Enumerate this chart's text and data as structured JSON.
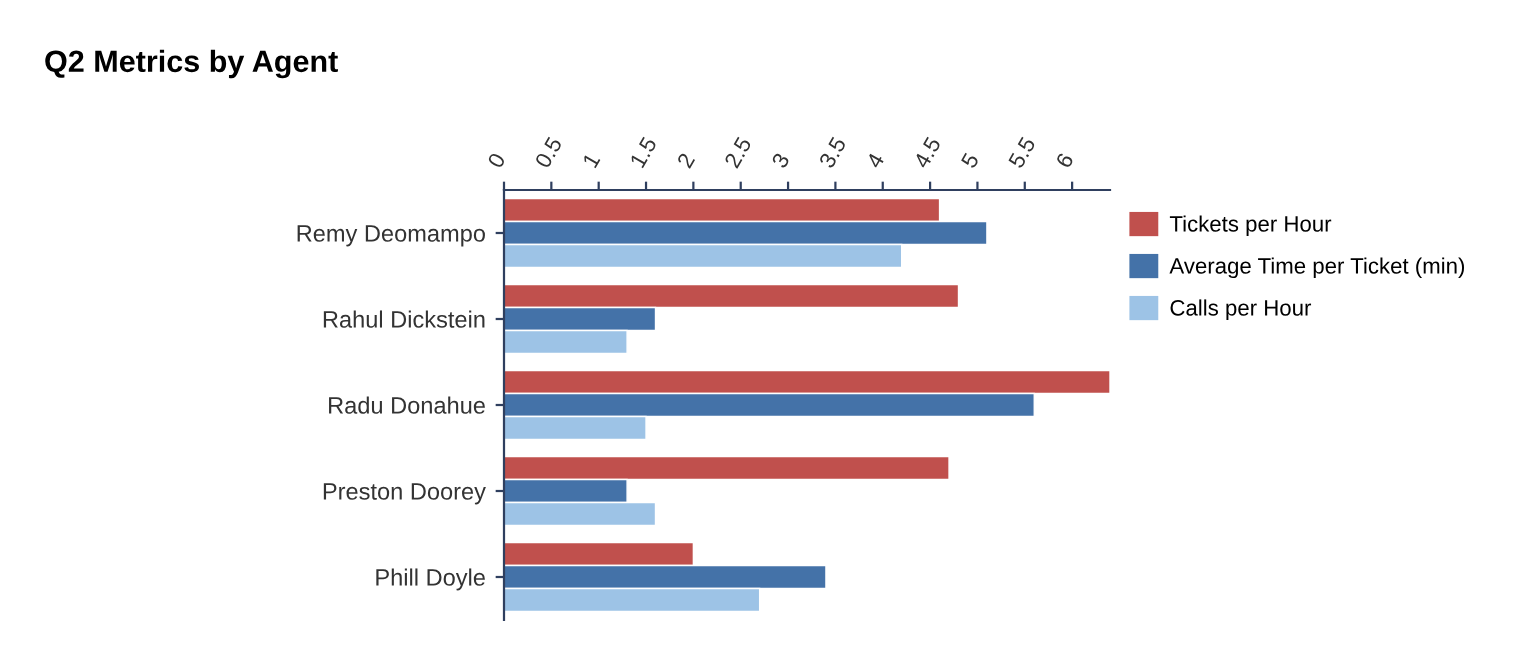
{
  "chart_data": {
    "type": "bar",
    "orientation": "horizontal",
    "title": "Q2 Metrics by Agent",
    "categories": [
      "Remy Deomampo",
      "Rahul Dickstein",
      "Radu Donahue",
      "Preston Doorey",
      "Phill Doyle"
    ],
    "series": [
      {
        "name": "Tickets per Hour",
        "color": "#c0504d",
        "values": [
          4.6,
          4.8,
          6.4,
          4.7,
          2.0
        ]
      },
      {
        "name": "Average Time per Ticket (min)",
        "color": "#4472a8",
        "values": [
          5.1,
          1.6,
          5.6,
          1.3,
          3.4
        ]
      },
      {
        "name": "Calls per Hour",
        "color": "#9dc3e6",
        "values": [
          4.2,
          1.3,
          1.5,
          1.6,
          2.7
        ]
      }
    ],
    "xlim": [
      0,
      6.4
    ],
    "xticks": [
      0,
      0.5,
      1,
      1.5,
      2,
      2.5,
      3,
      3.5,
      4,
      4.5,
      5,
      5.5,
      6
    ],
    "grid": false,
    "legend": "right"
  }
}
